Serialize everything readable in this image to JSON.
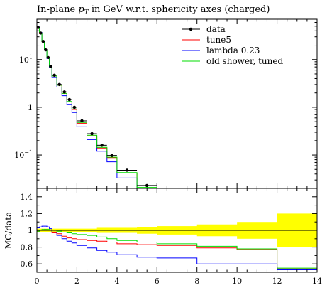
{
  "chart_data": [
    {
      "type": "line",
      "title": "In-plane p_T in GeV w.r.t. sphericity axes (charged)",
      "title_prefix": "In-plane ",
      "title_var": "p",
      "title_sub": "T",
      "title_suffix": " in GeV w.r.t. sphericity axes (charged)",
      "yscale": "log",
      "ylim": [
        0.02,
        70
      ],
      "xlim": [
        0,
        14
      ],
      "yticks": [
        {
          "value": 10,
          "base": "10",
          "exp": "1"
        },
        {
          "value": 1,
          "base": "1",
          "exp": ""
        },
        {
          "value": 0.1,
          "base": "10",
          "exp": "−1"
        }
      ],
      "legend_position": "top-right",
      "bin_edges": [
        0,
        0.125,
        0.25,
        0.375,
        0.5,
        0.625,
        0.75,
        1.0,
        1.25,
        1.5,
        1.75,
        2.0,
        2.5,
        3.0,
        3.5,
        4.0,
        5.0,
        6.0,
        8.0,
        10.0,
        12.0,
        14.0
      ],
      "data": {
        "name": "data",
        "x": [
          0.0625,
          0.1875,
          0.3125,
          0.4375,
          0.5625,
          0.6875,
          0.875,
          1.125,
          1.375,
          1.625,
          1.875,
          2.25,
          2.75,
          3.25,
          3.75,
          4.5,
          5.5
        ],
        "y": [
          47,
          36,
          24,
          16,
          11,
          7.2,
          4.7,
          3.0,
          2.1,
          1.45,
          1.0,
          0.52,
          0.28,
          0.16,
          0.098,
          0.048,
          0.023
        ]
      },
      "series": [
        {
          "name": "tune5",
          "color": "#ff0000",
          "values": [
            45,
            35,
            24,
            16,
            11,
            7.2,
            4.5,
            2.9,
            1.95,
            1.3,
            0.9,
            0.46,
            0.25,
            0.14,
            0.088,
            0.042,
            0.02,
            0,
            0,
            0,
            0
          ]
        },
        {
          "name": "lambda 0.23",
          "color": "#0000ff",
          "values": [
            48,
            37,
            24.5,
            16,
            10.5,
            6.8,
            4.2,
            2.65,
            1.75,
            1.15,
            0.78,
            0.39,
            0.21,
            0.12,
            0.072,
            0.033,
            0.015,
            0,
            0,
            0,
            0
          ]
        },
        {
          "name": "old shower, tuned",
          "color": "#00dd00",
          "values": [
            46,
            36,
            24,
            16,
            11,
            7.1,
            4.5,
            2.9,
            1.95,
            1.32,
            0.92,
            0.48,
            0.26,
            0.145,
            0.09,
            0.043,
            0.021,
            0,
            0,
            0,
            0
          ]
        }
      ]
    },
    {
      "type": "line",
      "ylabel": "MC/data",
      "xlim": [
        0,
        14
      ],
      "ylim": [
        0.5,
        1.5
      ],
      "yticks": [
        0.6,
        0.8,
        1,
        1.2,
        1.4
      ],
      "ytick_labels": [
        "0.6",
        "0.8",
        "1",
        "1.2",
        "1.4"
      ],
      "xticks": [
        0,
        2,
        4,
        6,
        8,
        10,
        12,
        14
      ],
      "xtick_labels": [
        "0",
        "2",
        "4",
        "6",
        "8",
        "10",
        "12",
        "14"
      ],
      "bin_edges": [
        0,
        0.125,
        0.25,
        0.375,
        0.5,
        0.625,
        0.75,
        1.0,
        1.25,
        1.5,
        1.75,
        2.0,
        2.5,
        3.0,
        3.5,
        4.0,
        5.0,
        6.0,
        8.0,
        10.0,
        12.0,
        14.0
      ],
      "uncertainty_band": {
        "color": "#ffff00",
        "lo": [
          0.98,
          0.98,
          0.98,
          0.98,
          0.98,
          0.98,
          0.98,
          0.98,
          0.98,
          0.98,
          0.98,
          0.98,
          0.98,
          0.97,
          0.97,
          0.97,
          0.96,
          0.95,
          0.93,
          0.9,
          0.8
        ],
        "hi": [
          1.02,
          1.02,
          1.02,
          1.02,
          1.02,
          1.02,
          1.02,
          1.02,
          1.02,
          1.02,
          1.02,
          1.02,
          1.02,
          1.03,
          1.03,
          1.03,
          1.04,
          1.05,
          1.07,
          1.1,
          1.2
        ]
      },
      "series": [
        {
          "name": "tune5",
          "color": "#ff0000",
          "values": [
            0.99,
            1.0,
            1.0,
            1.01,
            1.0,
            1.0,
            0.97,
            0.96,
            0.93,
            0.91,
            0.9,
            0.89,
            0.88,
            0.87,
            0.86,
            0.84,
            0.83,
            0.82,
            0.79,
            0.77,
            0.54
          ]
        },
        {
          "name": "lambda 0.23",
          "color": "#0000ff",
          "values": [
            1.03,
            1.04,
            1.05,
            1.05,
            1.04,
            1.02,
            0.98,
            0.94,
            0.9,
            0.87,
            0.85,
            0.82,
            0.79,
            0.76,
            0.74,
            0.71,
            0.68,
            0.67,
            0.6,
            0.6,
            0.53
          ]
        },
        {
          "name": "old shower, tuned",
          "color": "#00dd00",
          "values": [
            0.99,
            1.0,
            1.01,
            1.01,
            1.01,
            1.0,
            1.0,
            0.99,
            0.98,
            0.97,
            0.96,
            0.95,
            0.94,
            0.92,
            0.9,
            0.88,
            0.86,
            0.84,
            0.81,
            0.78,
            0.55
          ]
        }
      ]
    }
  ]
}
